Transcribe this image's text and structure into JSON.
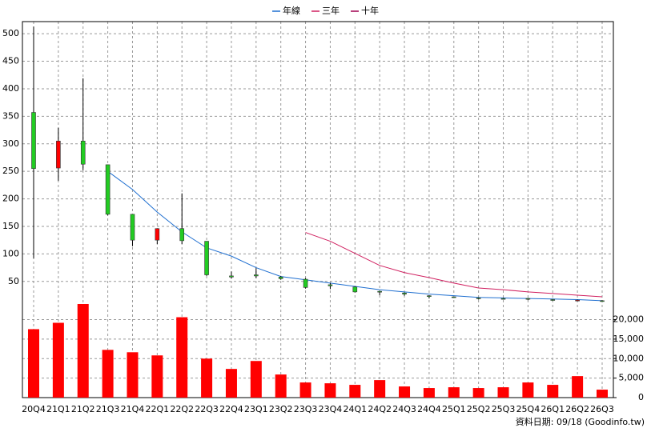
{
  "chart_data": [
    {
      "type": "candlestick",
      "categories": [
        "20Q4",
        "21Q1",
        "21Q2",
        "21Q3",
        "21Q4",
        "22Q1",
        "22Q2",
        "22Q3",
        "22Q4",
        "23Q1",
        "23Q2",
        "23Q3",
        "23Q4",
        "24Q1",
        "24Q2",
        "24Q3",
        "24Q4",
        "25Q1",
        "25Q2",
        "25Q3",
        "25Q4",
        "26Q1",
        "26Q2",
        "26Q3"
      ],
      "open": [
        357,
        256,
        305,
        262,
        172,
        125,
        146,
        123,
        60,
        62,
        58,
        54,
        44,
        40,
        32,
        29,
        24,
        22,
        20,
        19,
        19,
        17,
        16,
        15
      ],
      "high": [
        513,
        329,
        419,
        262,
        172,
        146,
        210,
        123,
        68,
        74,
        60,
        56,
        47,
        41,
        33,
        30,
        25,
        22,
        21,
        20,
        20,
        18,
        17,
        16
      ],
      "low": [
        92,
        233,
        252,
        170,
        114,
        118,
        118,
        60,
        55,
        56,
        53,
        37,
        36,
        30,
        25,
        24,
        19,
        20,
        17,
        17,
        16,
        15,
        14,
        13
      ],
      "close": [
        255,
        305,
        263,
        172,
        125,
        146,
        124,
        62,
        58,
        60,
        55,
        39,
        42,
        31,
        31,
        27,
        23,
        21,
        19,
        18,
        18,
        16,
        16,
        14
      ],
      "up_color": "#ff0000",
      "down_color": "#22cc22",
      "series": [
        {
          "name": "年線",
          "color": "#1f6fd0",
          "values": [
            null,
            null,
            null,
            250,
            217,
            176,
            140,
            111,
            96,
            75,
            59,
            53,
            47,
            41,
            35,
            31,
            27,
            24,
            21,
            20,
            19,
            18,
            17,
            15
          ]
        },
        {
          "name": "三年",
          "color": "#d02060",
          "values": [
            null,
            null,
            null,
            null,
            null,
            null,
            null,
            null,
            null,
            null,
            null,
            139,
            123,
            101,
            79,
            66,
            57,
            47,
            38,
            35,
            31,
            28,
            25,
            22
          ]
        },
        {
          "name": "十年",
          "color": "#a00050",
          "values": [
            null,
            null,
            null,
            null,
            null,
            null,
            null,
            null,
            null,
            null,
            null,
            null,
            null,
            null,
            null,
            null,
            null,
            null,
            null,
            null,
            null,
            null,
            null,
            null
          ]
        }
      ],
      "ylim": [
        9,
        522
      ],
      "yticks": [
        50,
        100,
        150,
        200,
        250,
        300,
        350,
        400,
        450,
        500
      ],
      "grid": true
    },
    {
      "type": "bar",
      "color": "#ff0000",
      "values": [
        17550,
        19180,
        24000,
        12240,
        11630,
        10820,
        20610,
        10000,
        7350,
        9390,
        5920,
        3880,
        3670,
        3270,
        4490,
        2860,
        2450,
        2650,
        2450,
        2650,
        3880,
        3270,
        5510,
        2040
      ],
      "ylim": [
        0,
        24000
      ],
      "yticks": [
        0,
        {
          "value": 5000,
          "label": "5,000"
        },
        {
          "value": 10000,
          "label": "10,000"
        },
        {
          "value": 15000,
          "label": "15,000"
        },
        {
          "value": 20000,
          "label": "20,000"
        }
      ],
      "grid": true
    }
  ],
  "footer": "資料日期: 09/18 (Goodinfo.tw)"
}
